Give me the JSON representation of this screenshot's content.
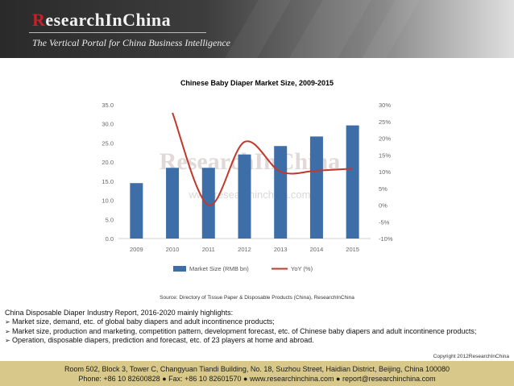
{
  "header": {
    "logo_prefix": "R",
    "logo_main": "esearchInChina",
    "tagline": "The Vertical Portal for China Business Intelligence"
  },
  "chart_data": {
    "type": "bar+line",
    "title": "Chinese Baby Diaper Market Size, 2009-2015",
    "categories": [
      "2009",
      "2010",
      "2011",
      "2012",
      "2013",
      "2014",
      "2015"
    ],
    "series": [
      {
        "name": "Market Size (RMB bn)",
        "type": "bar",
        "axis": "left",
        "color": "#3d6ea8",
        "values": [
          14.5,
          18.5,
          18.5,
          22.0,
          24.2,
          26.7,
          29.6
        ]
      },
      {
        "name": "YoY (%)",
        "type": "line",
        "axis": "right",
        "color": "#c0392b",
        "values": [
          null,
          27.6,
          0.0,
          18.9,
          10.0,
          10.3,
          10.9
        ]
      }
    ],
    "left_axis": {
      "ylim": [
        0,
        35
      ],
      "ticks": [
        "0.0",
        "5.0",
        "10.0",
        "15.0",
        "20.0",
        "25.0",
        "30.0",
        "35.0"
      ]
    },
    "right_axis": {
      "ylim": [
        -10,
        30
      ],
      "ticks": [
        "-10%",
        "-5%",
        "0%",
        "5%",
        "10%",
        "15%",
        "20%",
        "25%",
        "30%"
      ]
    },
    "legend_position": "bottom",
    "grid": false,
    "watermark": "ResearchInChina · www.researchinchina.com"
  },
  "source_note": "Source: Directory of Tissue Paper & Disposable Products (China), ResearchInChina",
  "highlights": {
    "heading": "China Disposable Diaper Industry Report, 2016-2020 mainly highlights:",
    "bullet_glyph": "➢",
    "items": [
      "Market size, demand, etc. of global baby diapers and adult incontinence products;",
      "Market size, production and marketing, competition pattern, development forecast, etc. of Chinese baby diapers and adult incontinence products;",
      "Operation, disposable diapers, prediction and forecast, etc. of 23 players at home and abroad."
    ]
  },
  "copyright": "Copyright 2012ResearchInChina",
  "footer": {
    "address": "Room 502, Block 3, Tower C, Changyuan Tiandi Building, No. 18, Suzhou Street, Haidian District, Beijing, China 100080",
    "phone": "Phone: +86 10 82600828",
    "fax": "Fax: +86 10 82601570",
    "website": "www.researchinchina.com",
    "email": "report@researchinchina.com",
    "separator": "●"
  }
}
